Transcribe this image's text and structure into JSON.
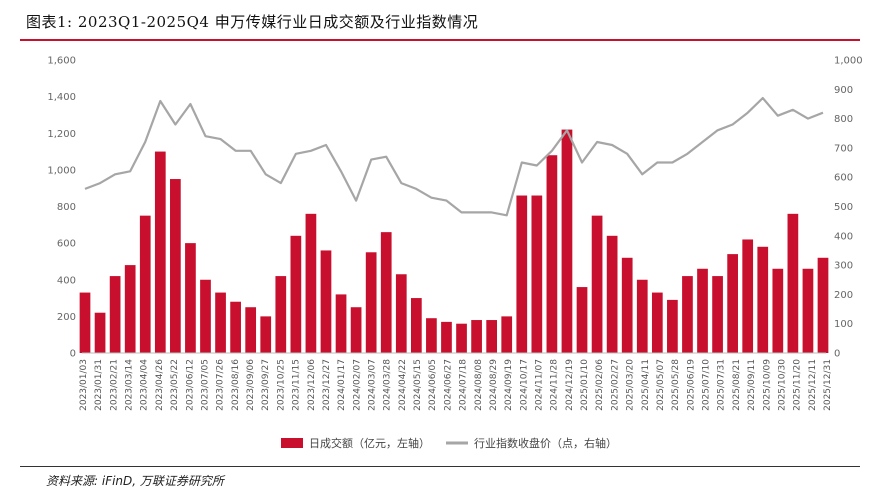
{
  "figure": {
    "title": "图表1:  2023Q1-2025Q4 申万传媒行业日成交额及行业指数情况",
    "source": "资料来源: iFinD, 万联证券研究所"
  },
  "chart_data": {
    "type": "bar+line",
    "left_axis": {
      "ylim": [
        0,
        1600
      ],
      "ticks": [
        "0",
        "200",
        "400",
        "600",
        "800",
        "1,000",
        "1,200",
        "1,400",
        "1,600"
      ]
    },
    "right_axis": {
      "ylim": [
        0,
        1000
      ],
      "ticks": [
        "0",
        "100",
        "200",
        "300",
        "400",
        "500",
        "600",
        "700",
        "800",
        "900",
        "1,000"
      ]
    },
    "x_tick_labels": [
      "2023/01/03",
      "2023/01/31",
      "2023/02/21",
      "2023/03/14",
      "2023/04/04",
      "2023/04/26",
      "2023/05/22",
      "2023/06/12",
      "2023/07/05",
      "2023/07/26",
      "2023/08/16",
      "2023/09/06",
      "2023/09/27",
      "2023/10/25",
      "2023/11/15",
      "2023/12/06",
      "2023/12/27",
      "2024/01/17",
      "2024/02/07",
      "2024/03/07",
      "2024/03/28",
      "2024/04/22",
      "2024/05/15",
      "2024/06/05",
      "2024/06/27",
      "2024/07/18",
      "2024/08/08",
      "2024/08/29",
      "2024/09/19",
      "2024/10/17",
      "2024/11/07",
      "2024/11/28",
      "2024/12/19",
      "2025/01/10",
      "2025/02/06",
      "2025/02/27",
      "2025/03/20",
      "2025/04/11",
      "2025/05/07",
      "2025/05/28",
      "2025/06/19",
      "2025/07/10",
      "2025/07/31",
      "2025/08/21",
      "2025/09/11",
      "2025/10/09",
      "2025/10/30",
      "2025/11/20",
      "2025/12/11",
      "2025/12/31"
    ],
    "x_tick_labels_visible": [
      "2023/01/03",
      "2023/01/31",
      "2023/02/21",
      "2023/03/14",
      "2023/04/04",
      "2023/04/26",
      "2023/05/22",
      "2023/06/12",
      "2023/07/05",
      "2023/07/26",
      "2023/08/16",
      "2023/09/06",
      "2023/09/27",
      "2023/10/25",
      "2023/11/15",
      "2023/12/06",
      "2023/12/27",
      "2024/01/17",
      "2024/02/07",
      "2024/03/07",
      "2024/03/28",
      "2024/04/22",
      "2024/05/15",
      "2024/06/05",
      "2024/06/27",
      "2024/07/18",
      "2024/08/08",
      "2024/08/29",
      "2024/09/19",
      "2024/10/17",
      "2024/11/07",
      "2024/11/28",
      "2024/12/19",
      "2025/01/10",
      "2025/02/06",
      "2025/02/27",
      "2025/03/20",
      "2025/04/11",
      "2025/05/07",
      "2025/05/28",
      "2025/06/19",
      "2025/07/10",
      "2025/07/31",
      "2025/08/21",
      "2025/09/11",
      "2025/10/09",
      "2025/10/30",
      "2025/11/20",
      "2025/12/11",
      "2025/12/31"
    ],
    "series": [
      {
        "name": "日成交额（亿元，左轴）",
        "kind": "bar",
        "axis": "left",
        "color": "#c8102e",
        "x": [
          "2023/01/03",
          "2023/01/31",
          "2023/02/21",
          "2023/03/14",
          "2023/04/04",
          "2023/04/26",
          "2023/05/22",
          "2023/06/12",
          "2023/07/05",
          "2023/07/26",
          "2023/08/16",
          "2023/09/06",
          "2023/09/27",
          "2023/10/25",
          "2023/11/15",
          "2023/12/06",
          "2023/12/27",
          "2024/01/17",
          "2024/02/07",
          "2024/03/07",
          "2024/03/28",
          "2024/04/22",
          "2024/05/15",
          "2024/06/05",
          "2024/06/27",
          "2024/07/18",
          "2024/08/08",
          "2024/08/29",
          "2024/09/19",
          "2024/10/17",
          "2024/11/07",
          "2024/11/28",
          "2024/12/19",
          "2025/01/10",
          "2025/02/06",
          "2025/02/27",
          "2025/03/20",
          "2025/04/11",
          "2025/05/07",
          "2025/05/28",
          "2025/06/19",
          "2025/07/10",
          "2025/07/31",
          "2025/08/21",
          "2025/09/11",
          "2025/10/09",
          "2025/10/30",
          "2025/11/20",
          "2025/12/11",
          "2025/12/31"
        ],
        "values": [
          330,
          220,
          420,
          480,
          750,
          1100,
          950,
          600,
          400,
          330,
          280,
          250,
          200,
          420,
          640,
          760,
          560,
          320,
          250,
          550,
          660,
          430,
          300,
          190,
          170,
          160,
          180,
          180,
          200,
          860,
          860,
          1080,
          1220,
          360,
          750,
          640,
          520,
          400,
          330,
          290,
          420,
          460,
          420,
          540,
          620,
          580,
          460,
          760,
          460,
          520
        ]
      },
      {
        "name": "行业指数收盘价（点，右轴）",
        "kind": "line",
        "axis": "right",
        "color": "#a6a6a6",
        "x": [
          "2023/01/03",
          "2023/01/31",
          "2023/02/21",
          "2023/03/14",
          "2023/04/04",
          "2023/04/26",
          "2023/05/22",
          "2023/06/12",
          "2023/07/05",
          "2023/07/26",
          "2023/08/16",
          "2023/09/06",
          "2023/09/27",
          "2023/10/25",
          "2023/11/15",
          "2023/12/06",
          "2023/12/27",
          "2024/01/17",
          "2024/02/07",
          "2024/03/07",
          "2024/03/28",
          "2024/04/22",
          "2024/05/15",
          "2024/06/05",
          "2024/06/27",
          "2024/07/18",
          "2024/08/08",
          "2024/08/29",
          "2024/09/19",
          "2024/10/17",
          "2024/11/07",
          "2024/11/28",
          "2024/12/19",
          "2025/01/10",
          "2025/02/06",
          "2025/02/27",
          "2025/03/20",
          "2025/04/11",
          "2025/05/07",
          "2025/05/28",
          "2025/06/19",
          "2025/07/10",
          "2025/07/31",
          "2025/08/21",
          "2025/09/11",
          "2025/10/09",
          "2025/10/30",
          "2025/11/20",
          "2025/12/11",
          "2025/12/31"
        ],
        "values": [
          560,
          580,
          610,
          620,
          720,
          860,
          780,
          850,
          740,
          730,
          690,
          690,
          610,
          580,
          680,
          690,
          710,
          620,
          520,
          660,
          670,
          580,
          560,
          530,
          520,
          480,
          480,
          480,
          470,
          650,
          640,
          690,
          760,
          650,
          720,
          710,
          680,
          610,
          650,
          650,
          680,
          720,
          760,
          780,
          820,
          870,
          810,
          830,
          800,
          820
        ]
      }
    ],
    "legend_position": "bottom-center"
  }
}
